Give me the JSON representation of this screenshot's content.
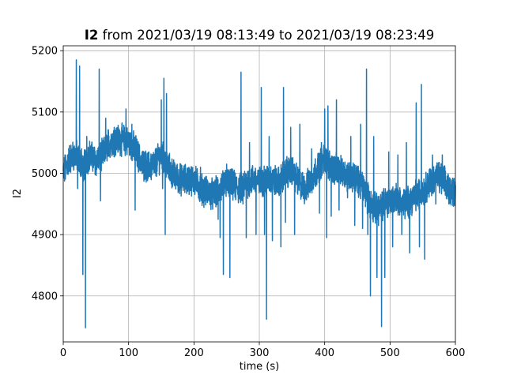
{
  "chart_data": {
    "type": "line",
    "title_bold": "I2",
    "title_rest": " from 2021/03/19 08:13:49 to 2021/03/19 08:23:49",
    "xlabel": "time (s)",
    "ylabel": "I2",
    "xlim": [
      0,
      600
    ],
    "ylim": [
      4725,
      5208
    ],
    "xticks": [
      0,
      100,
      200,
      300,
      400,
      500,
      600
    ],
    "yticks": [
      4800,
      4900,
      5000,
      5100,
      5200
    ],
    "xtick_labels": [
      "0",
      "100",
      "200",
      "300",
      "400",
      "500",
      "600"
    ],
    "ytick_labels": [
      "4800",
      "4900",
      "5000",
      "5100",
      "5200"
    ],
    "grid": true,
    "line_color": "#1f77b4",
    "baseline": [
      [
        0,
        5000
      ],
      [
        10,
        5025
      ],
      [
        20,
        5030
      ],
      [
        30,
        5010
      ],
      [
        40,
        5030
      ],
      [
        50,
        5020
      ],
      [
        60,
        5030
      ],
      [
        70,
        5050
      ],
      [
        80,
        5055
      ],
      [
        90,
        5055
      ],
      [
        100,
        5050
      ],
      [
        110,
        5040
      ],
      [
        120,
        5015
      ],
      [
        130,
        5010
      ],
      [
        140,
        5015
      ],
      [
        150,
        5030
      ],
      [
        160,
        5010
      ],
      [
        170,
        4995
      ],
      [
        180,
        4990
      ],
      [
        190,
        4990
      ],
      [
        200,
        4990
      ],
      [
        210,
        4975
      ],
      [
        220,
        4970
      ],
      [
        230,
        4965
      ],
      [
        240,
        4975
      ],
      [
        250,
        4985
      ],
      [
        260,
        4980
      ],
      [
        270,
        4975
      ],
      [
        280,
        4985
      ],
      [
        290,
        4990
      ],
      [
        300,
        4985
      ],
      [
        310,
        4990
      ],
      [
        320,
        4990
      ],
      [
        330,
        4985
      ],
      [
        340,
        5000
      ],
      [
        350,
        5005
      ],
      [
        360,
        4985
      ],
      [
        370,
        4975
      ],
      [
        380,
        4990
      ],
      [
        390,
        5010
      ],
      [
        400,
        5025
      ],
      [
        410,
        5010
      ],
      [
        420,
        5005
      ],
      [
        430,
        5000
      ],
      [
        440,
        4995
      ],
      [
        450,
        4990
      ],
      [
        460,
        4975
      ],
      [
        470,
        4950
      ],
      [
        480,
        4940
      ],
      [
        490,
        4950
      ],
      [
        500,
        4955
      ],
      [
        510,
        4960
      ],
      [
        520,
        4950
      ],
      [
        530,
        4955
      ],
      [
        540,
        4965
      ],
      [
        550,
        4970
      ],
      [
        560,
        4985
      ],
      [
        570,
        4995
      ],
      [
        580,
        4990
      ],
      [
        590,
        4975
      ],
      [
        600,
        4970
      ]
    ],
    "spikes": [
      [
        20,
        5185
      ],
      [
        22,
        4975
      ],
      [
        25,
        5175
      ],
      [
        28,
        5040
      ],
      [
        30,
        4835
      ],
      [
        32,
        4990
      ],
      [
        34,
        4748
      ],
      [
        36,
        5060
      ],
      [
        55,
        5170
      ],
      [
        57,
        4955
      ],
      [
        60,
        5040
      ],
      [
        65,
        5090
      ],
      [
        78,
        5075
      ],
      [
        96,
        5105
      ],
      [
        105,
        5080
      ],
      [
        110,
        4940
      ],
      [
        114,
        5050
      ],
      [
        150,
        5120
      ],
      [
        152,
        4975
      ],
      [
        154,
        5155
      ],
      [
        156,
        4900
      ],
      [
        158,
        5130
      ],
      [
        210,
        5010
      ],
      [
        230,
        4960
      ],
      [
        237,
        4925
      ],
      [
        240,
        4895
      ],
      [
        245,
        4835
      ],
      [
        250,
        5015
      ],
      [
        255,
        4830
      ],
      [
        272,
        5165
      ],
      [
        275,
        4950
      ],
      [
        280,
        4895
      ],
      [
        285,
        5050
      ],
      [
        295,
        4900
      ],
      [
        303,
        5140
      ],
      [
        308,
        4900
      ],
      [
        311,
        4762
      ],
      [
        315,
        5060
      ],
      [
        320,
        4890
      ],
      [
        333,
        4880
      ],
      [
        337,
        5140
      ],
      [
        340,
        4920
      ],
      [
        348,
        5075
      ],
      [
        354,
        4900
      ],
      [
        362,
        5080
      ],
      [
        380,
        5040
      ],
      [
        392,
        4935
      ],
      [
        395,
        5050
      ],
      [
        400,
        5105
      ],
      [
        403,
        4895
      ],
      [
        405,
        5110
      ],
      [
        410,
        4930
      ],
      [
        418,
        5120
      ],
      [
        422,
        4940
      ],
      [
        435,
        4960
      ],
      [
        440,
        5060
      ],
      [
        446,
        4915
      ],
      [
        455,
        5080
      ],
      [
        458,
        4910
      ],
      [
        464,
        5170
      ],
      [
        466,
        4900
      ],
      [
        470,
        4800
      ],
      [
        475,
        5060
      ],
      [
        480,
        4830
      ],
      [
        487,
        4750
      ],
      [
        492,
        4830
      ],
      [
        498,
        5035
      ],
      [
        504,
        4880
      ],
      [
        512,
        5030
      ],
      [
        518,
        4900
      ],
      [
        525,
        5050
      ],
      [
        530,
        4870
      ],
      [
        540,
        5115
      ],
      [
        545,
        4880
      ],
      [
        548,
        5145
      ],
      [
        553,
        4860
      ],
      [
        565,
        5030
      ],
      [
        570,
        4950
      ],
      [
        580,
        5030
      ],
      [
        590,
        4950
      ]
    ]
  }
}
